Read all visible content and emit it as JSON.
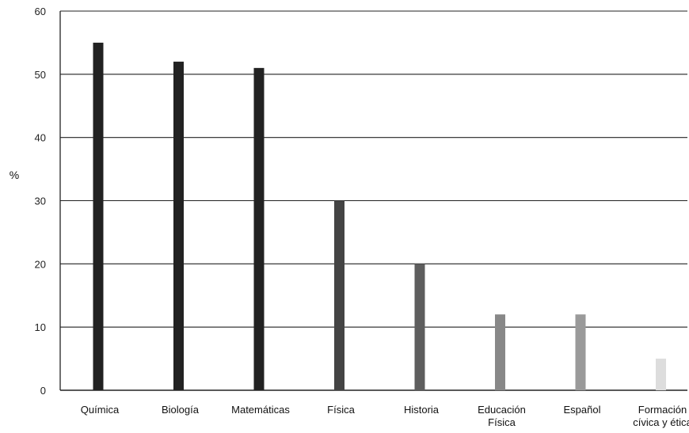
{
  "chart_data": {
    "type": "bar",
    "title": "",
    "xlabel": "",
    "ylabel": "%",
    "ylim": [
      0,
      60
    ],
    "yticks": [
      "0",
      "10",
      "20",
      "30",
      "40",
      "50",
      "60"
    ],
    "grid": true,
    "legend": "none",
    "categories": [
      [
        "Química"
      ],
      [
        "Biología"
      ],
      [
        "Matemáticas"
      ],
      [
        "Física"
      ],
      [
        "Historia"
      ],
      [
        "Educación",
        "Física"
      ],
      [
        "Español"
      ],
      [
        "Formación",
        "cívica y ética"
      ]
    ],
    "values": [
      55,
      52,
      51,
      30,
      20,
      12,
      12,
      5
    ],
    "bar_colors": [
      "#222222",
      "#222222",
      "#222222",
      "#444444",
      "#5e5e5e",
      "#888888",
      "#9a9a9a",
      "#dddddd"
    ]
  }
}
